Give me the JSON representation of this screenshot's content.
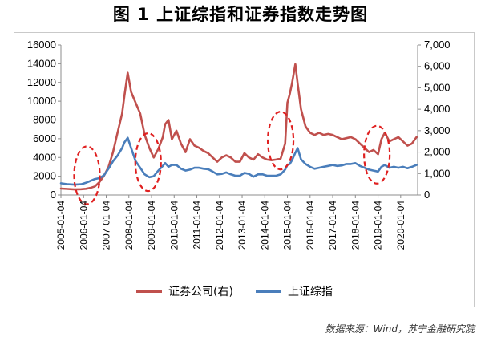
{
  "title": "图 1  上证综指和证券指数走势图",
  "source": "数据来源：Wind，苏宁金融研究院",
  "colors": {
    "sse": "#4a7ebb",
    "brokers": "#c0504d",
    "circle": "#e02020"
  },
  "chart_data": {
    "type": "line",
    "left_axis": {
      "min": 0,
      "max": 16000,
      "ticks": [
        "0",
        "2000",
        "4000",
        "6000",
        "8000",
        "10000",
        "12000",
        "14000",
        "16000"
      ]
    },
    "right_axis": {
      "min": 0,
      "max": 7000,
      "ticks": [
        "0",
        "1,000",
        "2,000",
        "3,000",
        "4,000",
        "5,000",
        "6,000",
        "7,000"
      ]
    },
    "x_ticks": [
      "2005-01-04",
      "2006-01-04",
      "2007-01-04",
      "2008-01-04",
      "2009-01-04",
      "2010-01-04",
      "2011-01-04",
      "2012-01-04",
      "2013-01-04",
      "2014-01-04",
      "2015-01-04",
      "2016-01-04",
      "2017-01-04",
      "2018-01-04",
      "2019-01-04",
      "2020-01-04"
    ],
    "x_range": [
      2005.0,
      2020.75
    ],
    "grid": false,
    "legend_position": "bottom",
    "series": [
      {
        "name": "证券公司(右)",
        "axis": "right",
        "color": "#c0504d",
        "x": [
          2005.0,
          2005.3,
          2005.6,
          2005.9,
          2006.1,
          2006.3,
          2006.5,
          2006.7,
          2006.9,
          2007.1,
          2007.3,
          2007.5,
          2007.7,
          2007.8,
          2007.95,
          2008.1,
          2008.3,
          2008.5,
          2008.7,
          2008.9,
          2009.1,
          2009.3,
          2009.5,
          2009.6,
          2009.75,
          2009.9,
          2010.1,
          2010.3,
          2010.5,
          2010.7,
          2010.9,
          2011.1,
          2011.3,
          2011.5,
          2011.7,
          2011.9,
          2012.1,
          2012.3,
          2012.5,
          2012.7,
          2012.9,
          2013.1,
          2013.3,
          2013.5,
          2013.7,
          2013.9,
          2014.1,
          2014.3,
          2014.5,
          2014.7,
          2014.9,
          2015.0,
          2015.1,
          2015.2,
          2015.35,
          2015.45,
          2015.6,
          2015.8,
          2016.0,
          2016.2,
          2016.4,
          2016.6,
          2016.8,
          2017.0,
          2017.2,
          2017.4,
          2017.6,
          2017.8,
          2018.0,
          2018.2,
          2018.4,
          2018.6,
          2018.8,
          2019.0,
          2019.15,
          2019.3,
          2019.5,
          2019.7,
          2019.9,
          2020.1,
          2020.3,
          2020.5,
          2020.7
        ],
        "values": [
          300,
          280,
          260,
          270,
          290,
          330,
          400,
          600,
          900,
          1300,
          2000,
          2900,
          3800,
          4600,
          5700,
          4800,
          4300,
          3800,
          2800,
          2200,
          1750,
          2150,
          2700,
          3300,
          3500,
          2600,
          3000,
          2400,
          2000,
          2600,
          2300,
          2200,
          2050,
          1950,
          1750,
          1550,
          1750,
          1850,
          1750,
          1550,
          1550,
          1950,
          1750,
          1650,
          1900,
          1750,
          1650,
          1620,
          1650,
          1700,
          2400,
          4300,
          4700,
          5200,
          6100,
          5200,
          4000,
          3200,
          2900,
          2800,
          2900,
          2800,
          2850,
          2800,
          2700,
          2600,
          2650,
          2700,
          2600,
          2400,
          2200,
          2000,
          2100,
          1900,
          2600,
          2900,
          2500,
          2600,
          2700,
          2500,
          2300,
          2400,
          2700
        ]
      },
      {
        "name": "上证综指",
        "axis": "left",
        "color": "#4a7ebb",
        "x": [
          2005.0,
          2005.3,
          2005.6,
          2005.9,
          2006.1,
          2006.3,
          2006.5,
          2006.7,
          2006.9,
          2007.1,
          2007.3,
          2007.5,
          2007.7,
          2007.8,
          2007.95,
          2008.1,
          2008.3,
          2008.5,
          2008.7,
          2008.9,
          2009.1,
          2009.3,
          2009.5,
          2009.6,
          2009.75,
          2009.9,
          2010.1,
          2010.3,
          2010.5,
          2010.7,
          2010.9,
          2011.1,
          2011.3,
          2011.5,
          2011.7,
          2011.9,
          2012.1,
          2012.3,
          2012.5,
          2012.7,
          2012.9,
          2013.1,
          2013.3,
          2013.5,
          2013.7,
          2013.9,
          2014.1,
          2014.3,
          2014.5,
          2014.7,
          2014.9,
          2015.0,
          2015.1,
          2015.2,
          2015.35,
          2015.45,
          2015.6,
          2015.8,
          2016.0,
          2016.2,
          2016.4,
          2016.6,
          2016.8,
          2017.0,
          2017.2,
          2017.4,
          2017.6,
          2017.8,
          2018.0,
          2018.2,
          2018.4,
          2018.6,
          2018.8,
          2019.0,
          2019.15,
          2019.3,
          2019.5,
          2019.7,
          2019.9,
          2020.1,
          2020.3,
          2020.5,
          2020.7
        ],
        "values": [
          1250,
          1150,
          1100,
          1150,
          1300,
          1500,
          1700,
          1800,
          2100,
          2800,
          3600,
          4200,
          5000,
          5600,
          6100,
          5000,
          3600,
          2900,
          2200,
          1900,
          2000,
          2600,
          3100,
          3400,
          3000,
          3200,
          3200,
          2800,
          2600,
          2700,
          2900,
          2900,
          2800,
          2750,
          2500,
          2200,
          2250,
          2400,
          2200,
          2050,
          2050,
          2350,
          2250,
          1950,
          2200,
          2200,
          2050,
          2050,
          2050,
          2200,
          2700,
          3200,
          3300,
          3700,
          4500,
          5000,
          3800,
          3300,
          3000,
          2800,
          2900,
          3000,
          3100,
          3200,
          3100,
          3150,
          3300,
          3300,
          3400,
          3100,
          2900,
          2700,
          2600,
          2500,
          3000,
          3200,
          2900,
          3000,
          2900,
          3000,
          2850,
          3000,
          3200
        ]
      }
    ],
    "annotations": [
      {
        "shape": "dashed-ellipse",
        "cx_year": 2006.15,
        "cy_left": 2100
      },
      {
        "shape": "dashed-ellipse",
        "cx_year": 2008.85,
        "cy_left": 3500
      },
      {
        "shape": "dashed-ellipse",
        "cx_year": 2014.7,
        "cy_left": 5800
      },
      {
        "shape": "dashed-ellipse",
        "cx_year": 2018.95,
        "cy_left": 4300
      }
    ]
  }
}
